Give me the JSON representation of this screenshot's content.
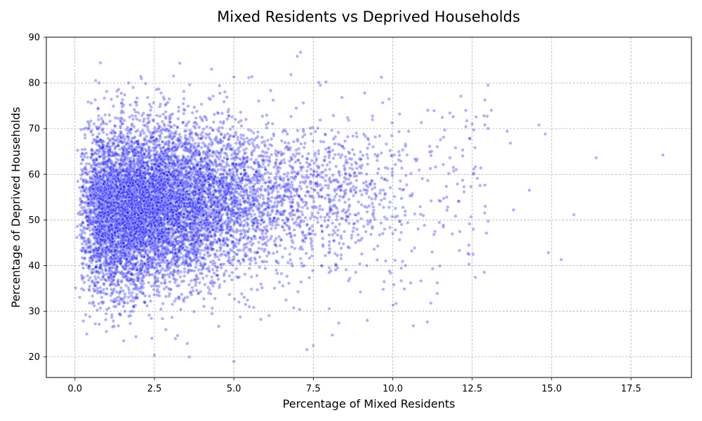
{
  "chart_data": {
    "type": "scatter",
    "title": "Mixed Residents vs Deprived Households",
    "xlabel": "Percentage of Mixed Residents",
    "ylabel": "Percentage of Deprived Households",
    "xlim": [
      -0.9,
      19.4
    ],
    "ylim": [
      15.5,
      90
    ],
    "x_ticks": [
      0.0,
      2.5,
      5.0,
      7.5,
      10.0,
      12.5,
      15.0,
      17.5
    ],
    "x_tick_labels": [
      "0.0",
      "2.5",
      "5.0",
      "7.5",
      "10.0",
      "12.5",
      "15.0",
      "17.5"
    ],
    "y_ticks": [
      20,
      30,
      40,
      50,
      60,
      70,
      80,
      90
    ],
    "y_tick_labels": [
      "20",
      "30",
      "40",
      "50",
      "60",
      "70",
      "80",
      "90"
    ],
    "grid": true,
    "marker_color": "#0000ff",
    "marker_edge_color": "#ffffff",
    "marker_alpha": 0.3,
    "series": [
      {
        "points_outliers": [
          [
            18.5,
            64.2
          ],
          [
            16.4,
            63.6
          ],
          [
            15.7,
            51.1
          ],
          [
            15.3,
            41.3
          ],
          [
            14.9,
            42.8
          ],
          [
            14.8,
            68.8
          ],
          [
            14.6,
            70.8
          ],
          [
            14.3,
            56.5
          ],
          [
            13.8,
            52.2
          ],
          [
            13.7,
            66.8
          ],
          [
            13.6,
            69.4
          ],
          [
            13.1,
            74.0
          ],
          [
            13.0,
            70.0
          ],
          [
            13.0,
            49.7
          ],
          [
            12.9,
            70.8
          ],
          [
            12.9,
            57.6
          ],
          [
            12.6,
            61.6
          ],
          [
            12.6,
            37.4
          ],
          [
            12.5,
            71.0
          ],
          [
            12.4,
            40.3
          ],
          [
            12.3,
            70.4
          ],
          [
            12.2,
            65.3
          ],
          [
            12.2,
            58.7
          ],
          [
            12.1,
            43.3
          ],
          [
            12.0,
            61.0
          ],
          [
            11.9,
            72.6
          ],
          [
            11.8,
            73.4
          ],
          [
            11.8,
            63.6
          ],
          [
            11.7,
            55.0
          ],
          [
            11.6,
            68.1
          ],
          [
            11.5,
            54.1
          ],
          [
            11.4,
            66.0
          ],
          [
            11.4,
            33.9
          ],
          [
            11.3,
            46.8
          ],
          [
            11.2,
            31.8
          ],
          [
            11.1,
            74.0
          ],
          [
            11.1,
            58.6
          ],
          [
            11.0,
            48.8
          ],
          [
            10.9,
            71.3
          ],
          [
            10.8,
            48.0
          ],
          [
            10.7,
            63.3
          ],
          [
            10.6,
            43.2
          ],
          [
            10.5,
            69.4
          ],
          [
            10.4,
            40.0
          ],
          [
            10.2,
            69.3
          ],
          [
            10.1,
            31.7
          ],
          [
            10.0,
            47.0
          ],
          [
            9.9,
            38.8
          ],
          [
            9.8,
            66.6
          ],
          [
            9.7,
            34.8
          ],
          [
            9.2,
            28.0
          ],
          [
            8.3,
            27.4
          ],
          [
            8.1,
            24.8
          ],
          [
            7.5,
            22.5
          ],
          [
            7.3,
            21.6
          ],
          [
            7.1,
            86.7
          ],
          [
            7.0,
            85.8
          ],
          [
            6.8,
            81.8
          ],
          [
            5.0,
            19.0
          ],
          [
            4.3,
            83.0
          ],
          [
            3.6,
            20.0
          ],
          [
            3.3,
            84.3
          ],
          [
            2.5,
            20.4
          ],
          [
            0.8,
            84.4
          ],
          [
            7.9,
            80.2
          ]
        ]
      }
    ]
  }
}
